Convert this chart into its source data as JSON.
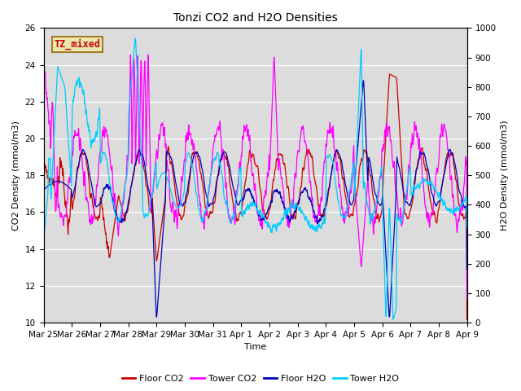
{
  "title": "Tonzi CO2 and H2O Densities",
  "xlabel": "Time",
  "ylabel_left": "CO2 Density (mmol/m3)",
  "ylabel_right": "H2O Density (mmol/m3)",
  "annotation": "TZ_mixed",
  "annotation_color": "#cc0000",
  "annotation_bg": "#e8e8b0",
  "annotation_edge": "#996600",
  "ylim_left": [
    10,
    26
  ],
  "ylim_right": [
    0,
    1000
  ],
  "yticks_left": [
    10,
    12,
    14,
    16,
    18,
    20,
    22,
    24,
    26
  ],
  "yticks_right": [
    0,
    100,
    200,
    300,
    400,
    500,
    600,
    700,
    800,
    900,
    1000
  ],
  "xtick_labels": [
    "Mar 25",
    "Mar 26",
    "Mar 27",
    "Mar 28",
    "Mar 29",
    "Mar 30",
    "Mar 31",
    "Apr 1",
    "Apr 2",
    "Apr 3",
    "Apr 4",
    "Apr 5",
    "Apr 6",
    "Apr 7",
    "Apr 8",
    "Apr 9"
  ],
  "bg_color": "#dcdcdc",
  "legend_labels": [
    "Floor CO2",
    "Tower CO2",
    "Floor H2O",
    "Tower H2O"
  ],
  "legend_colors": [
    "#cc0000",
    "#ff00ff",
    "#0000bb",
    "#00ccff"
  ],
  "line_colors": {
    "floor_co2": "#cc0000",
    "tower_co2": "#ff00ff",
    "floor_h2o": "#0000bb",
    "tower_h2o": "#00ccff"
  },
  "n_days": 15,
  "pts_per_day": 144
}
